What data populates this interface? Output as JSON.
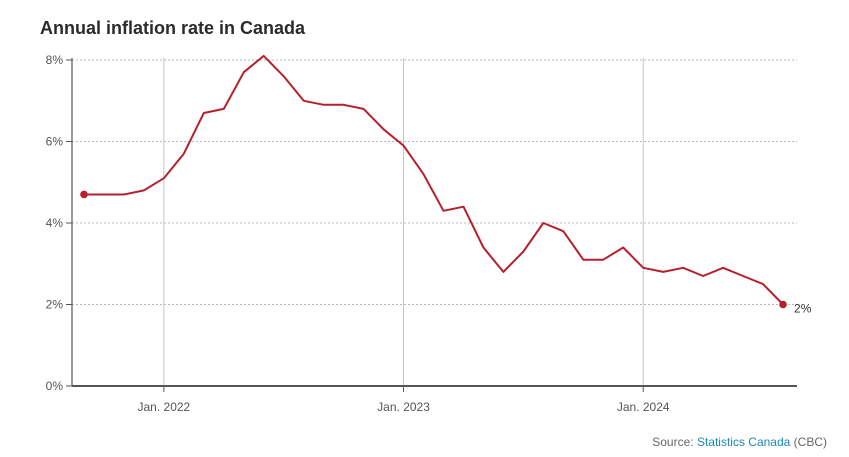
{
  "title": "Annual inflation rate in Canada",
  "source": {
    "prefix": "Source: ",
    "link_text": "Statistics Canada",
    "suffix": " (CBC)"
  },
  "chart_data": {
    "type": "line",
    "title": "Annual inflation rate in Canada",
    "xlabel": "",
    "ylabel": "",
    "xlim": [
      "2021-09",
      "2024-08"
    ],
    "ylim": [
      0,
      8
    ],
    "grid": true,
    "y_ticks": [
      {
        "value": 0,
        "label": "0%"
      },
      {
        "value": 2,
        "label": "2%"
      },
      {
        "value": 4,
        "label": "4%"
      },
      {
        "value": 6,
        "label": "6%"
      },
      {
        "value": 8,
        "label": "8%"
      }
    ],
    "x_ticks": [
      {
        "value": "2022-01",
        "label": "Jan. 2022"
      },
      {
        "value": "2023-01",
        "label": "Jan. 2023"
      },
      {
        "value": "2024-01",
        "label": "Jan. 2024"
      }
    ],
    "line_color": "#b5202e",
    "end_label": "2%",
    "series": [
      {
        "x": [
          "2021-09",
          "2021-10",
          "2021-11",
          "2021-12",
          "2022-01",
          "2022-02",
          "2022-03",
          "2022-04",
          "2022-05",
          "2022-06",
          "2022-07",
          "2022-08",
          "2022-09",
          "2022-10",
          "2022-11",
          "2022-12",
          "2023-01",
          "2023-02",
          "2023-03",
          "2023-04",
          "2023-05",
          "2023-06",
          "2023-07",
          "2023-08",
          "2023-09",
          "2023-10",
          "2023-11",
          "2023-12",
          "2024-01",
          "2024-02",
          "2024-03",
          "2024-04",
          "2024-05",
          "2024-06",
          "2024-07",
          "2024-08"
        ],
        "values": [
          4.7,
          4.7,
          4.7,
          4.8,
          5.1,
          5.7,
          6.7,
          6.8,
          7.7,
          8.1,
          7.6,
          7.0,
          6.9,
          6.9,
          6.8,
          6.3,
          5.9,
          5.2,
          4.3,
          4.4,
          3.4,
          2.8,
          3.3,
          4.0,
          3.8,
          3.1,
          3.1,
          3.4,
          2.9,
          2.8,
          2.9,
          2.7,
          2.9,
          2.7,
          2.5,
          2.0
        ]
      }
    ]
  }
}
